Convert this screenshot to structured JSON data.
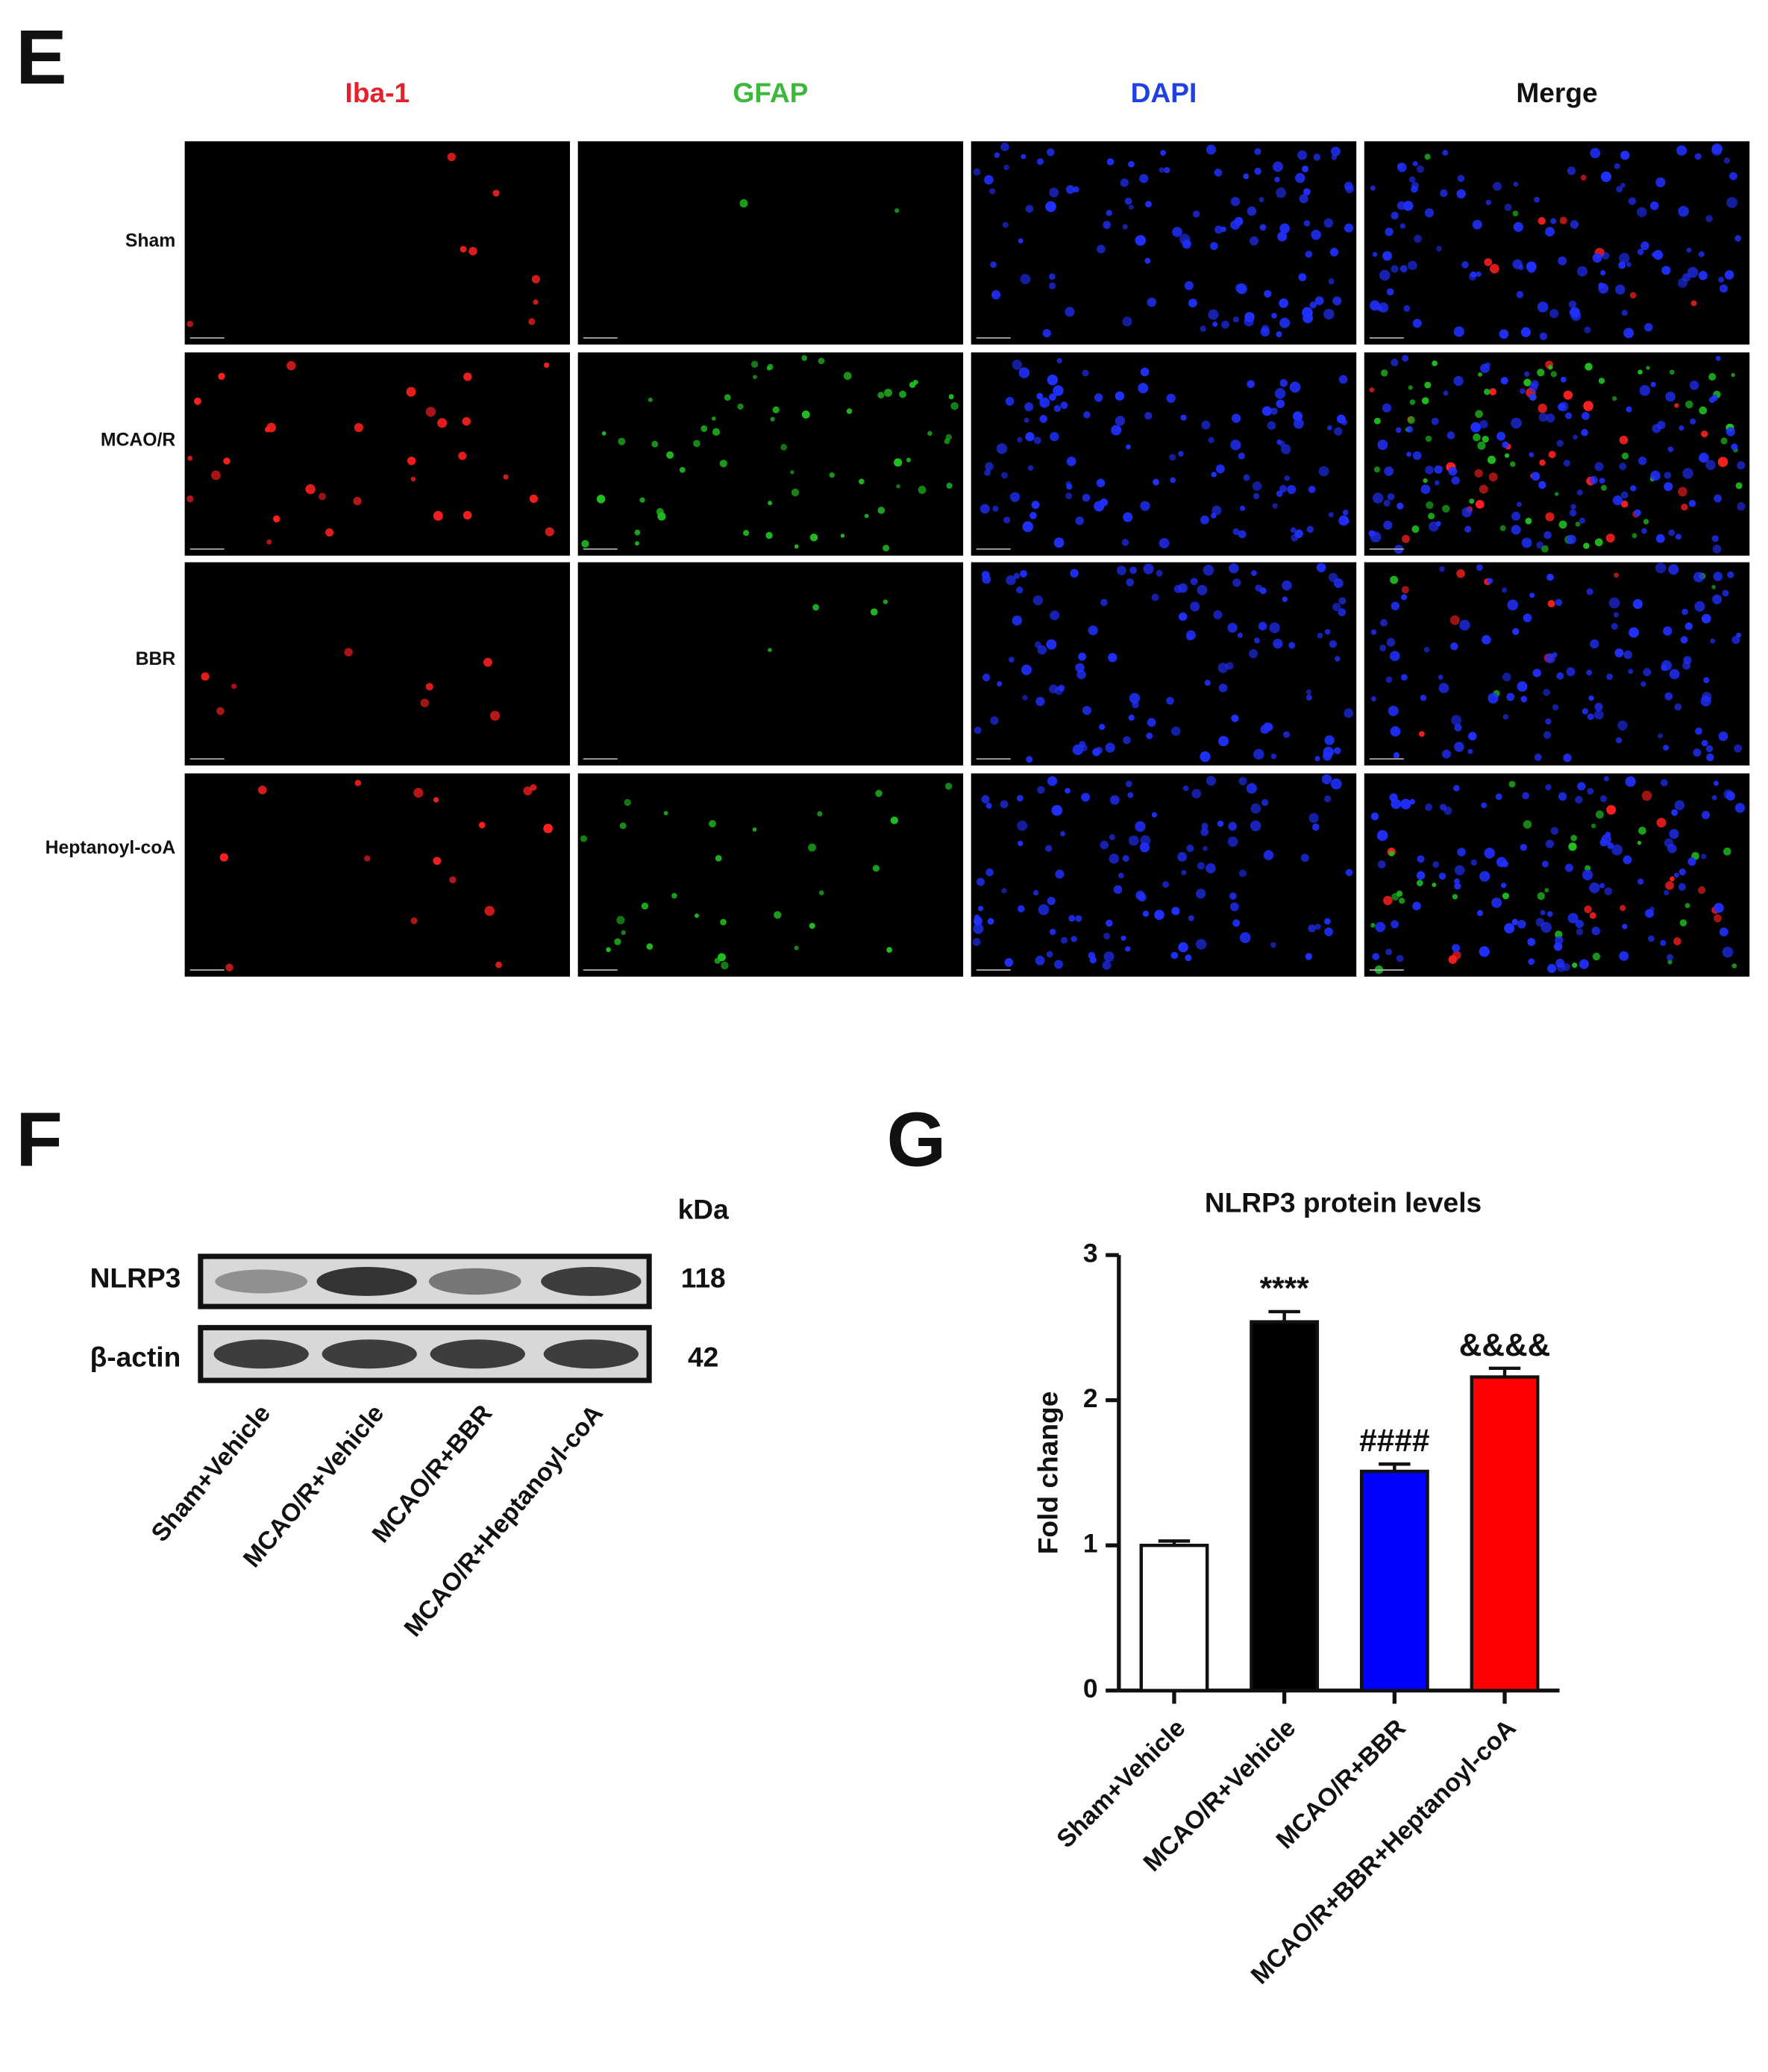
{
  "panel_e": {
    "letter": "E",
    "channels": [
      "Iba-1",
      "GFAP",
      "DAPI",
      "Merge"
    ],
    "rows": [
      "Sham",
      "MCAO/R",
      "BBR",
      "Heptanoyl-coA"
    ]
  },
  "panel_f": {
    "letter": "F",
    "unit_header": "kDa",
    "proteins": [
      {
        "name": "NLRP3",
        "kda": 118
      },
      {
        "name": "β-actin",
        "kda": 42
      }
    ],
    "lanes": [
      "Sham+Vehicle",
      "MCAO/R+Vehicle",
      "MCAO/R+BBR",
      "MCAO/R+Heptanoyl-coA"
    ]
  },
  "panel_g": {
    "letter": "G"
  },
  "chart_data": {
    "type": "bar",
    "title": "NLRP3 protein levels",
    "y_label": "Fold change",
    "categories": [
      "Sham+Vehicle",
      "MCAO/R+Vehicle",
      "MCAO/R+BBR",
      "MCAO/R+BBR+Heptanoyl-coA"
    ],
    "values": [
      1.0,
      2.54,
      1.51,
      2.16
    ],
    "errors": [
      0.03,
      0.07,
      0.05,
      0.06
    ],
    "colors": [
      "#ffffff",
      "#000000",
      "#0000ff",
      "#ff0000"
    ],
    "annotations": [
      null,
      "****",
      "####",
      "&&&&"
    ],
    "ylim": [
      0,
      3
    ],
    "yticks": [
      0,
      1,
      2,
      3
    ],
    "grid": false
  }
}
